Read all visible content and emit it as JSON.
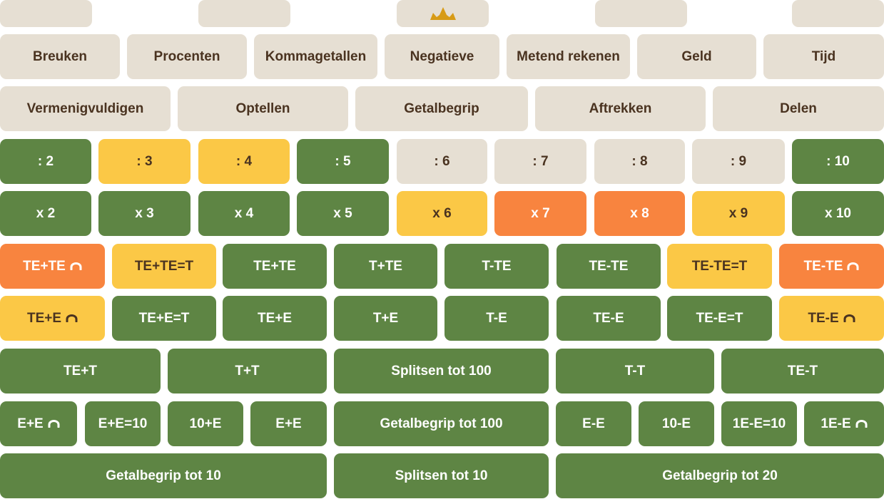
{
  "colors": {
    "beige": "#e6dfd3",
    "green": "#5e8544",
    "yellow": "#fbc846",
    "orange": "#f8843f",
    "brown_text": "#4a3320",
    "crown": "#d79b16"
  },
  "top_row": {
    "crown_icon": "crown-icon"
  },
  "subjects": [
    "Breuken",
    "Procenten",
    "Kommagetallen",
    "Negatieve",
    "Metend rekenen",
    "Geld",
    "Tijd"
  ],
  "operations": [
    "Vermenigvuldigen",
    "Optellen",
    "Getalbegrip",
    "Aftrekken",
    "Delen"
  ],
  "division": [
    {
      "label": ": 2",
      "status": "green"
    },
    {
      "label": ": 3",
      "status": "yellow"
    },
    {
      "label": ": 4",
      "status": "yellow"
    },
    {
      "label": ": 5",
      "status": "green"
    },
    {
      "label": ": 6",
      "status": "beige"
    },
    {
      "label": ": 7",
      "status": "beige"
    },
    {
      "label": ": 8",
      "status": "beige"
    },
    {
      "label": ": 9",
      "status": "beige"
    },
    {
      "label": ": 10",
      "status": "green"
    }
  ],
  "multiplication": [
    {
      "label": "x 2",
      "status": "green"
    },
    {
      "label": "x 3",
      "status": "green"
    },
    {
      "label": "x 4",
      "status": "green"
    },
    {
      "label": "x 5",
      "status": "green"
    },
    {
      "label": "x 6",
      "status": "yellow"
    },
    {
      "label": "x 7",
      "status": "orange"
    },
    {
      "label": "x 8",
      "status": "orange"
    },
    {
      "label": "x 9",
      "status": "yellow"
    },
    {
      "label": "x 10",
      "status": "green"
    }
  ],
  "te_row": [
    {
      "label": "TE+TE",
      "status": "orange",
      "icon": "bridge-arc-icon"
    },
    {
      "label": "TE+TE=T",
      "status": "yellow"
    },
    {
      "label": "TE+TE",
      "status": "green"
    },
    {
      "label": "T+TE",
      "status": "green"
    },
    {
      "label": "T-TE",
      "status": "green"
    },
    {
      "label": "TE-TE",
      "status": "green"
    },
    {
      "label": "TE-TE=T",
      "status": "yellow"
    },
    {
      "label": "TE-TE",
      "status": "orange",
      "icon": "bridge-arc-icon"
    }
  ],
  "e_row": [
    {
      "label": "TE+E",
      "status": "yellow",
      "icon": "bridge-arc-icon"
    },
    {
      "label": "TE+E=T",
      "status": "green"
    },
    {
      "label": "TE+E",
      "status": "green"
    },
    {
      "label": "T+E",
      "status": "green"
    },
    {
      "label": "T-E",
      "status": "green"
    },
    {
      "label": "TE-E",
      "status": "green"
    },
    {
      "label": "TE-E=T",
      "status": "green"
    },
    {
      "label": "TE-E",
      "status": "yellow",
      "icon": "bridge-arc-icon"
    }
  ],
  "t_row": [
    {
      "label": "TE+T",
      "status": "green"
    },
    {
      "label": "T+T",
      "status": "green"
    },
    {
      "label": "Splitsen tot 100",
      "status": "green"
    },
    {
      "label": "T-T",
      "status": "green"
    },
    {
      "label": "TE-T",
      "status": "green"
    }
  ],
  "small_row": [
    {
      "label": "E+E",
      "status": "green",
      "icon": "bridge-arc-icon"
    },
    {
      "label": "E+E=10",
      "status": "green"
    },
    {
      "label": "10+E",
      "status": "green"
    },
    {
      "label": "E+E",
      "status": "green"
    },
    {
      "label": "Getalbegrip tot 100",
      "status": "green"
    },
    {
      "label": "E-E",
      "status": "green"
    },
    {
      "label": "10-E",
      "status": "green"
    },
    {
      "label": "1E-E=10",
      "status": "green"
    },
    {
      "label": "1E-E",
      "status": "green",
      "icon": "bridge-arc-icon"
    }
  ],
  "base_row": [
    {
      "label": "Getalbegrip tot 10",
      "status": "green"
    },
    {
      "label": "Splitsen tot 10",
      "status": "green"
    },
    {
      "label": "Getalbegrip tot 20",
      "status": "green"
    }
  ]
}
